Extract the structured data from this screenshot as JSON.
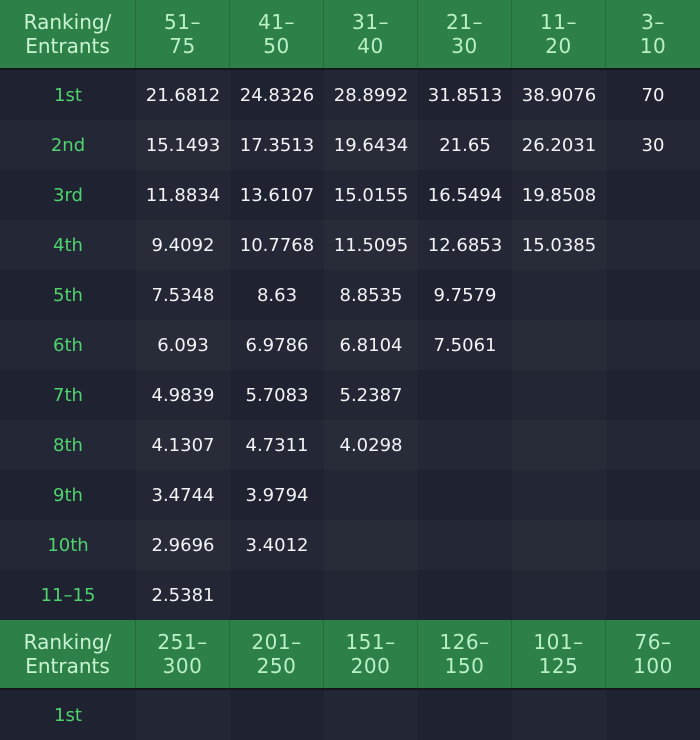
{
  "table1": {
    "headers": [
      "Ranking/\nEntrants",
      "51–\n75",
      "41–\n50",
      "31–\n40",
      "21–\n30",
      "11–\n20",
      "3–\n10"
    ],
    "rows": [
      {
        "rank": "1st",
        "values": [
          "21.6812",
          "24.8326",
          "28.8992",
          "31.8513",
          "38.9076",
          "70"
        ]
      },
      {
        "rank": "2nd",
        "values": [
          "15.1493",
          "17.3513",
          "19.6434",
          "21.65",
          "26.2031",
          "30"
        ]
      },
      {
        "rank": "3rd",
        "values": [
          "11.8834",
          "13.6107",
          "15.0155",
          "16.5494",
          "19.8508",
          ""
        ]
      },
      {
        "rank": "4th",
        "values": [
          "9.4092",
          "10.7768",
          "11.5095",
          "12.6853",
          "15.0385",
          ""
        ]
      },
      {
        "rank": "5th",
        "values": [
          "7.5348",
          "8.63",
          "8.8535",
          "9.7579",
          "",
          ""
        ]
      },
      {
        "rank": "6th",
        "values": [
          "6.093",
          "6.9786",
          "6.8104",
          "7.5061",
          "",
          ""
        ]
      },
      {
        "rank": "7th",
        "values": [
          "4.9839",
          "5.7083",
          "5.2387",
          "",
          "",
          ""
        ]
      },
      {
        "rank": "8th",
        "values": [
          "4.1307",
          "4.7311",
          "4.0298",
          "",
          "",
          ""
        ]
      },
      {
        "rank": "9th",
        "values": [
          "3.4744",
          "3.9794",
          "",
          "",
          "",
          ""
        ]
      },
      {
        "rank": "10th",
        "values": [
          "2.9696",
          "3.4012",
          "",
          "",
          "",
          ""
        ]
      },
      {
        "rank": "11–15",
        "values": [
          "2.5381",
          "",
          "",
          "",
          "",
          ""
        ]
      }
    ]
  },
  "table2": {
    "headers": [
      "Ranking/\nEntrants",
      "251–\n300",
      "201–\n250",
      "151–\n200",
      "126–\n150",
      "101–\n125",
      "76–\n100"
    ],
    "rows": [
      {
        "rank": "1st",
        "values": [
          "",
          "",
          "",
          "",
          "",
          ""
        ]
      }
    ]
  },
  "colors": {
    "header_bg": "#2e8049",
    "header_text": "#b9f0c6",
    "rank_text": "#4fd36e",
    "row_bg_odd": "#1f2230",
    "row_bg_even": "#242836",
    "value_text": "#f2f3f5"
  }
}
